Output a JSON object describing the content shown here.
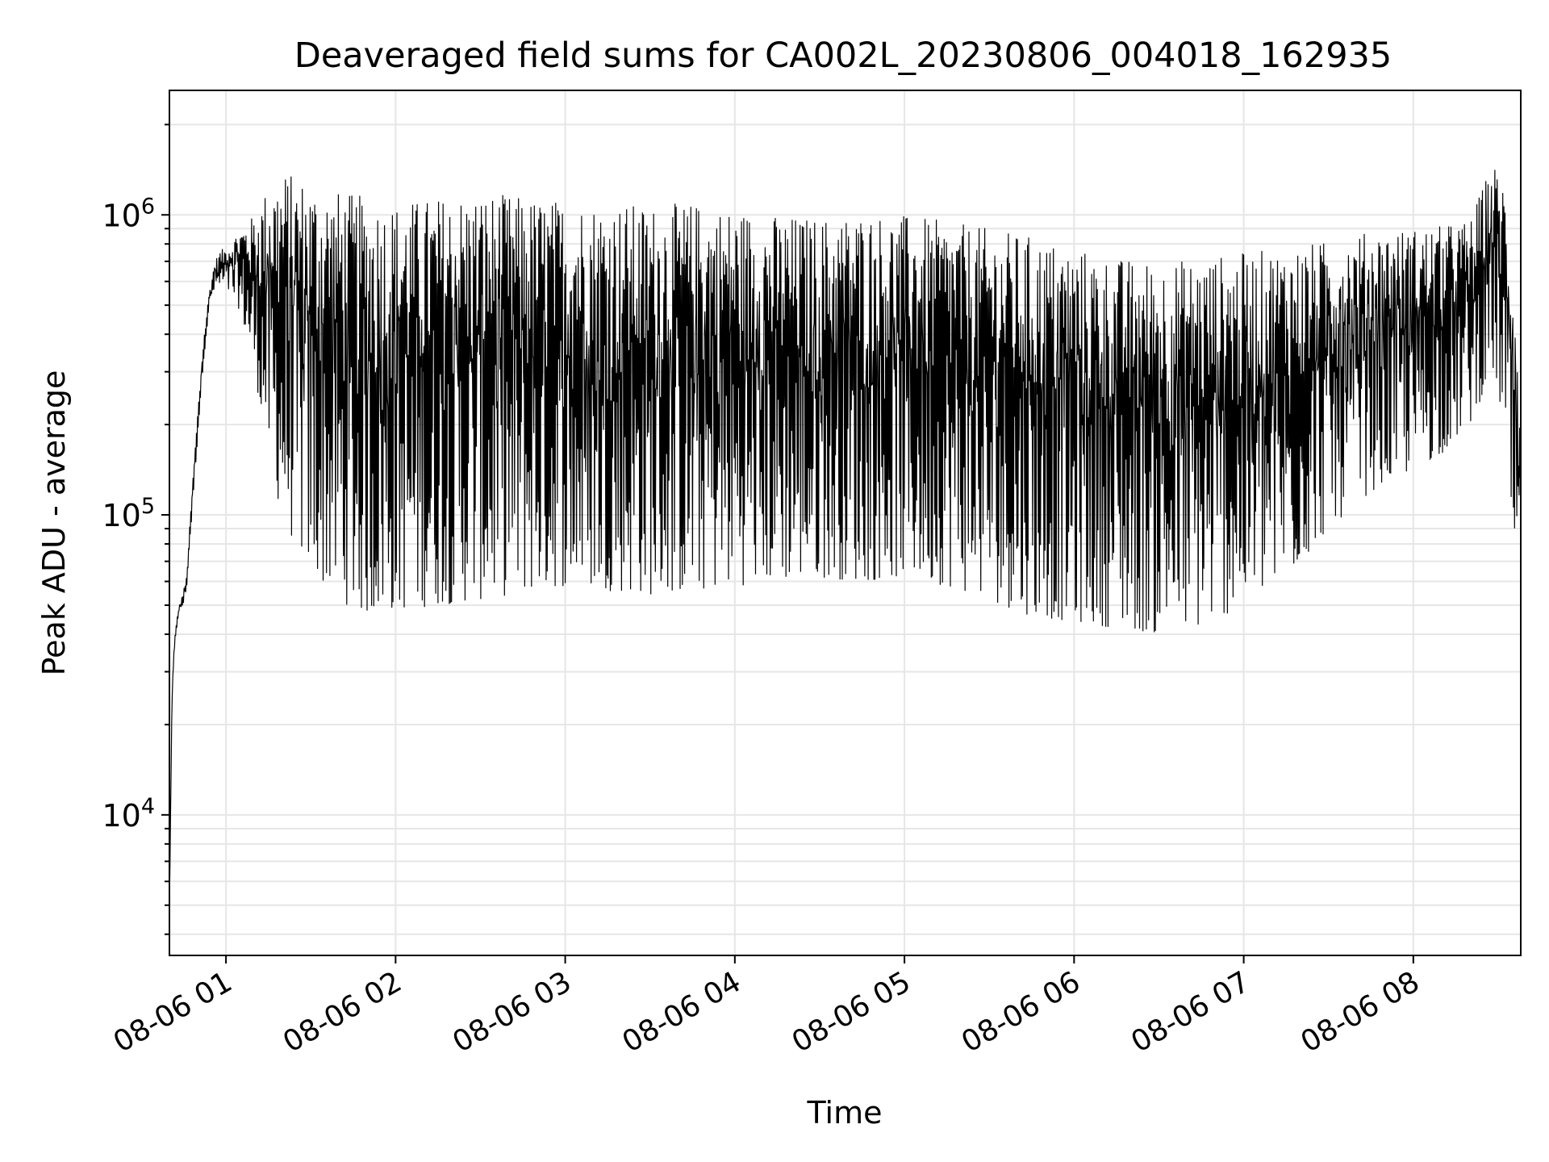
{
  "chart_data": {
    "type": "line",
    "title": "Deaveraged field sums for CA002L_20230806_004018_162935",
    "xlabel": "Time",
    "ylabel": "Peak ADU - average",
    "yscale": "log",
    "grid": true,
    "legend": "none",
    "line_color": "#000000",
    "grid_color": "#e6e6e6",
    "xlim": [
      "2023-08-06 00:40",
      "2023-08-06 08:38"
    ],
    "ylim": [
      3400,
      2600000
    ],
    "x_ticks": [
      {
        "t": "2023-08-06 01:00",
        "label": "08-06 01"
      },
      {
        "t": "2023-08-06 02:00",
        "label": "08-06 02"
      },
      {
        "t": "2023-08-06 03:00",
        "label": "08-06 03"
      },
      {
        "t": "2023-08-06 04:00",
        "label": "08-06 04"
      },
      {
        "t": "2023-08-06 05:00",
        "label": "08-06 05"
      },
      {
        "t": "2023-08-06 06:00",
        "label": "08-06 06"
      },
      {
        "t": "2023-08-06 07:00",
        "label": "08-06 07"
      },
      {
        "t": "2023-08-06 08:00",
        "label": "08-06 08"
      }
    ],
    "y_ticks": [
      {
        "value": 10000,
        "base": "10",
        "exp": "4"
      },
      {
        "value": 100000,
        "base": "10",
        "exp": "5"
      },
      {
        "value": 1000000,
        "base": "10",
        "exp": "6"
      }
    ],
    "series": [
      {
        "x": [
          "2023-08-06 00:40",
          "2023-08-06 00:41",
          "2023-08-06 00:42",
          "2023-08-06 00:43",
          "2023-08-06 00:44",
          "2023-08-06 00:45",
          "2023-08-06 00:46",
          "2023-08-06 00:48",
          "2023-08-06 00:50",
          "2023-08-06 00:52",
          "2023-08-06 00:54",
          "2023-08-06 00:56",
          "2023-08-06 00:58",
          "2023-08-06 01:00",
          "2023-08-06 01:05",
          "2023-08-06 01:10",
          "2023-08-06 01:15",
          "2023-08-06 01:20",
          "2023-08-06 01:30",
          "2023-08-06 01:40",
          "2023-08-06 01:50",
          "2023-08-06 02:00",
          "2023-08-06 02:15",
          "2023-08-06 02:30",
          "2023-08-06 02:45",
          "2023-08-06 03:00",
          "2023-08-06 03:15",
          "2023-08-06 03:30",
          "2023-08-06 03:45",
          "2023-08-06 04:00",
          "2023-08-06 04:15",
          "2023-08-06 04:30",
          "2023-08-06 04:45",
          "2023-08-06 05:00",
          "2023-08-06 05:15",
          "2023-08-06 05:30",
          "2023-08-06 05:45",
          "2023-08-06 06:00",
          "2023-08-06 06:15",
          "2023-08-06 06:30",
          "2023-08-06 06:45",
          "2023-08-06 07:00",
          "2023-08-06 07:15",
          "2023-08-06 07:30",
          "2023-08-06 07:45",
          "2023-08-06 08:00",
          "2023-08-06 08:10",
          "2023-08-06 08:20",
          "2023-08-06 08:28",
          "2023-08-06 08:32",
          "2023-08-06 08:36",
          "2023-08-06 08:38"
        ],
        "high": [
          5000,
          30000,
          40000,
          48000,
          52000,
          56000,
          62000,
          120000,
          220000,
          380000,
          550000,
          700000,
          760000,
          780000,
          900000,
          1000000,
          1250000,
          1400000,
          1300000,
          1200000,
          1150000,
          1100000,
          1150000,
          1200000,
          1150000,
          1120000,
          1100000,
          1080000,
          1100000,
          1050000,
          1000000,
          980000,
          1020000,
          1000000,
          950000,
          900000,
          850000,
          780000,
          720000,
          700000,
          720000,
          750000,
          780000,
          820000,
          880000,
          900000,
          920000,
          960000,
          1500000,
          1300000,
          600000,
          200000
        ],
        "low": [
          5000,
          22000,
          38000,
          45000,
          48000,
          50000,
          55000,
          100000,
          180000,
          320000,
          480000,
          560000,
          560000,
          560000,
          480000,
          300000,
          160000,
          95000,
          65000,
          52000,
          46000,
          48000,
          50000,
          52000,
          55000,
          58000,
          56000,
          54000,
          55000,
          58000,
          60000,
          62000,
          60000,
          62000,
          58000,
          52000,
          46000,
          44000,
          42000,
          40000,
          42000,
          50000,
          60000,
          90000,
          120000,
          140000,
          160000,
          200000,
          300000,
          200000,
          55000,
          55000
        ]
      }
    ]
  }
}
